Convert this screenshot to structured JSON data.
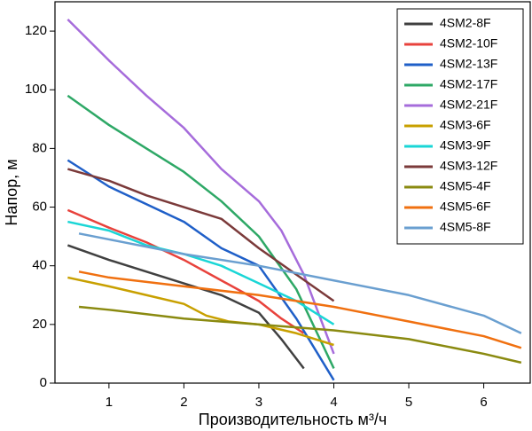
{
  "chart_data": {
    "type": "line",
    "x_label": "Производительность м³/ч",
    "y_label": "Напор, м",
    "xlim": [
      0.28,
      6.62
    ],
    "ylim": [
      0,
      130
    ],
    "xticks": [
      1,
      2,
      3,
      4,
      5,
      6
    ],
    "yticks": [
      0,
      20,
      40,
      60,
      80,
      100,
      120
    ],
    "legend": "top-right",
    "series": [
      {
        "name": "4SM2-8F",
        "color": "#404040",
        "x": [
          0.45,
          1,
          1.5,
          2,
          2.5,
          3,
          3.3,
          3.6
        ],
        "values": [
          47,
          42,
          38,
          34,
          30,
          24,
          15,
          5
        ]
      },
      {
        "name": "4SM2-10F",
        "color": "#e8423c",
        "x": [
          0.45,
          1,
          1.5,
          2,
          2.5,
          3,
          3.3,
          3.6
        ],
        "values": [
          59,
          53,
          48,
          42,
          35,
          28,
          22,
          17
        ]
      },
      {
        "name": "4SM2-13F",
        "color": "#1f5fc8",
        "x": [
          0.45,
          1,
          1.5,
          2,
          2.5,
          3,
          3.5,
          4
        ],
        "values": [
          76,
          67,
          61,
          55,
          46,
          40,
          22,
          1
        ]
      },
      {
        "name": "4SM2-17F",
        "color": "#2ea866",
        "x": [
          0.45,
          1,
          1.5,
          2,
          2.5,
          3,
          3.5,
          4
        ],
        "values": [
          98,
          88,
          80,
          72,
          62,
          50,
          32,
          5
        ]
      },
      {
        "name": "4SM2-21F",
        "color": "#a66cdb",
        "x": [
          0.45,
          1,
          1.5,
          2,
          2.5,
          3,
          3.3,
          3.6,
          4
        ],
        "values": [
          124,
          110,
          98,
          87,
          73,
          62,
          52,
          37,
          10
        ]
      },
      {
        "name": "4SM3-6F",
        "color": "#c8a000",
        "x": [
          0.45,
          1,
          1.5,
          2,
          2.3,
          2.6,
          3,
          3.5,
          4
        ],
        "values": [
          36,
          33,
          30,
          27,
          23,
          21,
          20,
          17,
          13
        ]
      },
      {
        "name": "4SM3-9F",
        "color": "#1ad6d6",
        "x": [
          0.45,
          1,
          1.5,
          2,
          2.5,
          3,
          3.5,
          4
        ],
        "values": [
          55,
          52,
          47,
          44,
          40,
          34,
          28,
          20
        ]
      },
      {
        "name": "4SM3-12F",
        "color": "#7b3a3a",
        "x": [
          0.45,
          1,
          1.5,
          2,
          2.5,
          3,
          3.5,
          4
        ],
        "values": [
          73,
          69,
          64,
          60,
          56,
          46,
          37,
          28
        ]
      },
      {
        "name": "4SM5-4F",
        "color": "#8a8a10",
        "x": [
          0.6,
          1,
          2,
          3,
          4,
          5,
          6,
          6.5
        ],
        "values": [
          26,
          25,
          22,
          20,
          18,
          15,
          10,
          7
        ]
      },
      {
        "name": "4SM5-6F",
        "color": "#f07010",
        "x": [
          0.6,
          1,
          2,
          3,
          4,
          5,
          6,
          6.5
        ],
        "values": [
          38,
          36,
          33,
          30,
          26,
          21,
          16,
          12
        ]
      },
      {
        "name": "4SM5-8F",
        "color": "#6a9fd0",
        "x": [
          0.6,
          1,
          2,
          3,
          4,
          5,
          6,
          6.5
        ],
        "values": [
          51,
          49,
          44,
          40,
          35,
          30,
          23,
          17
        ]
      }
    ]
  }
}
